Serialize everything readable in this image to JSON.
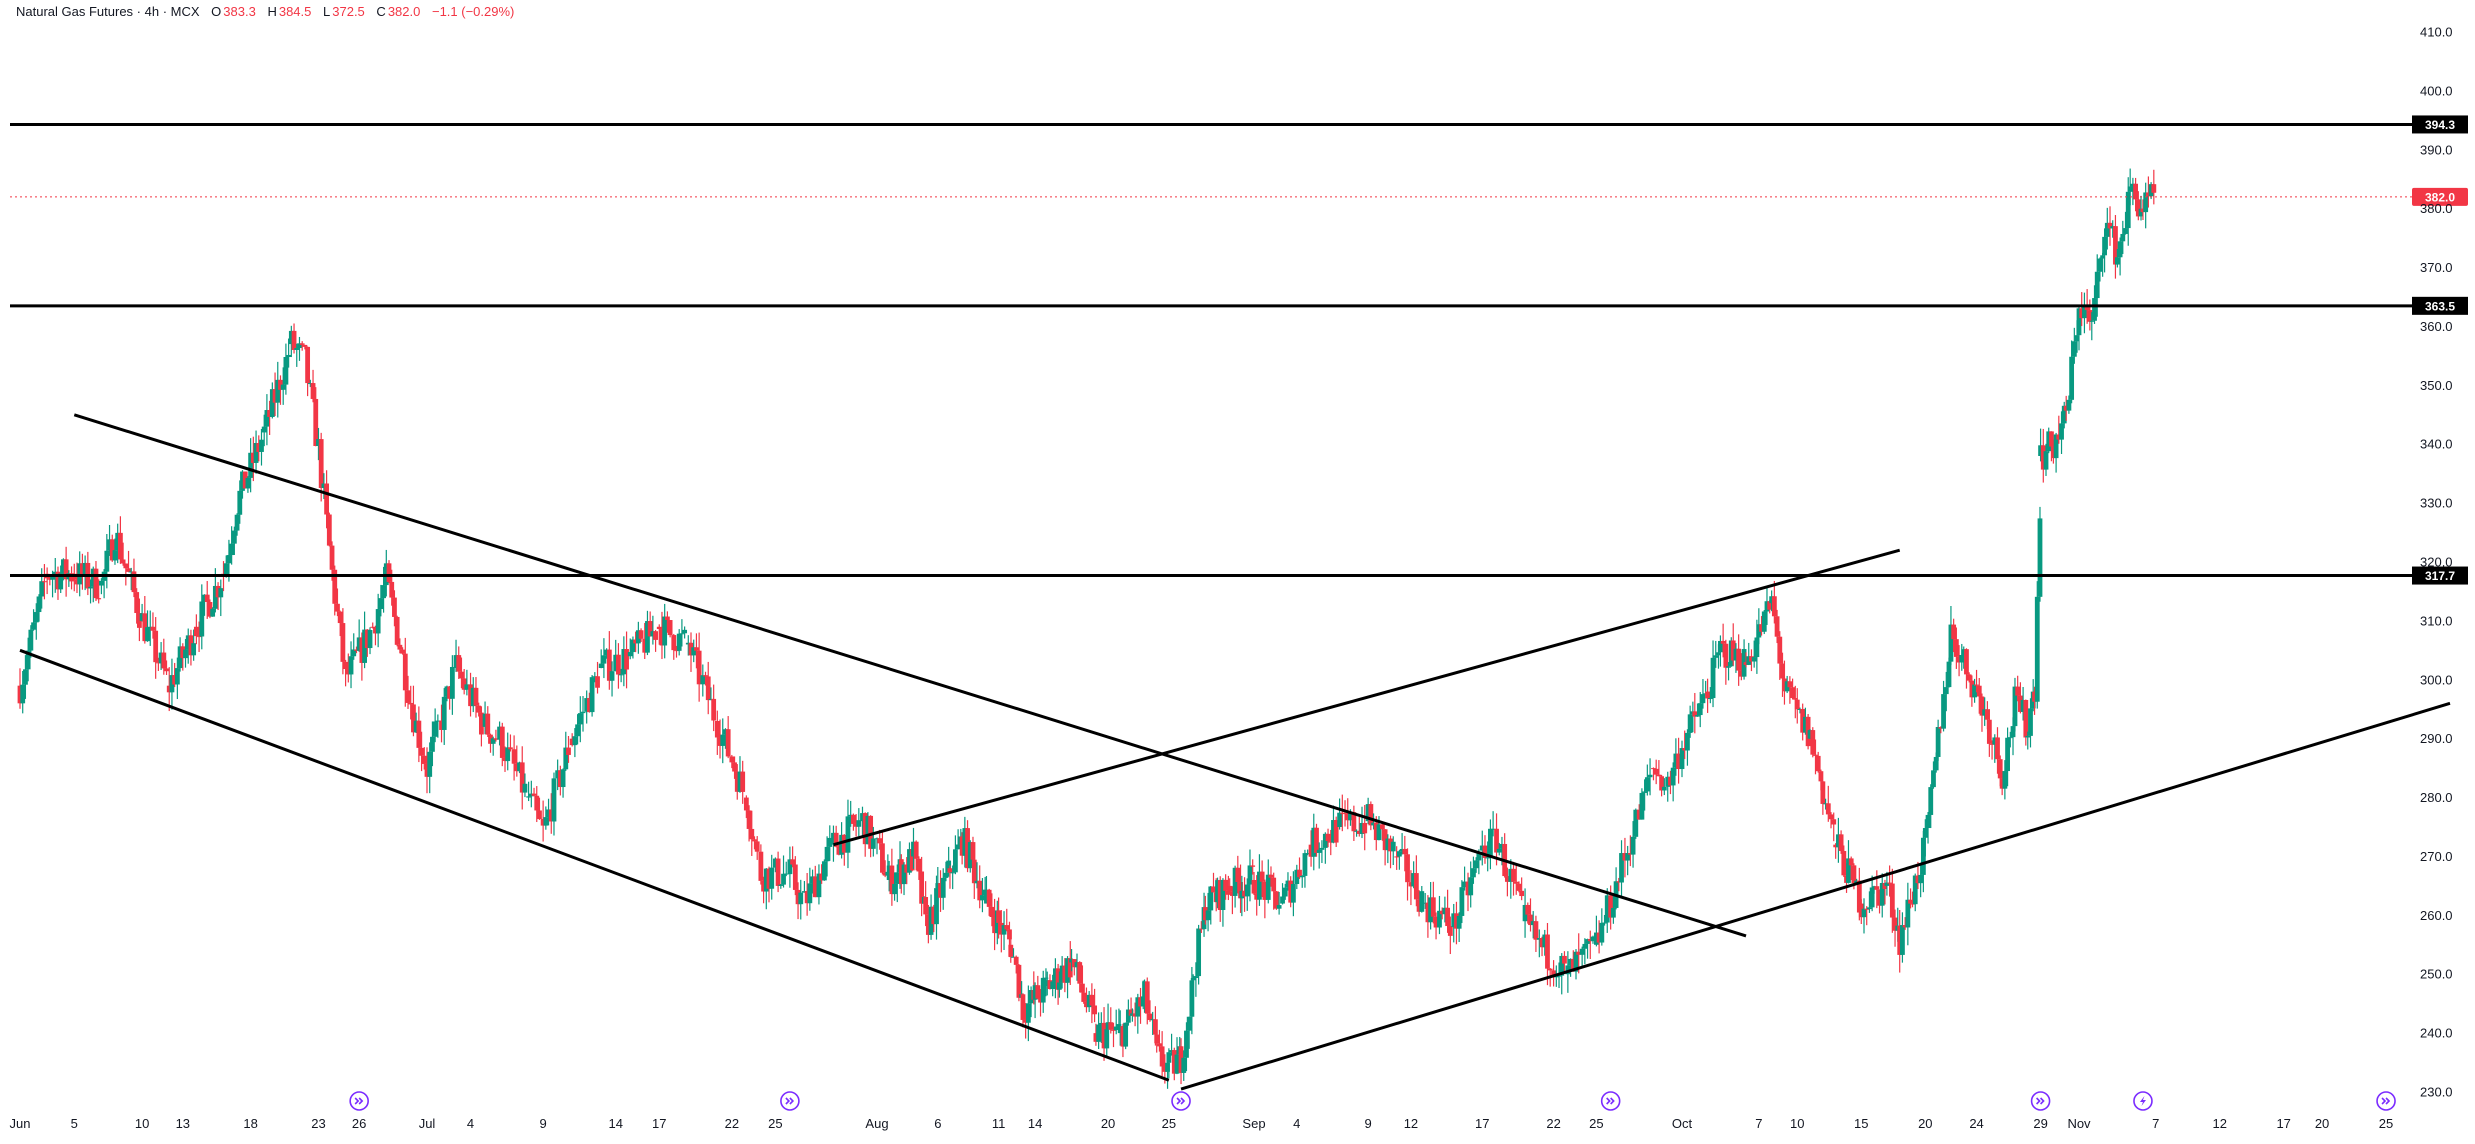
{
  "header": {
    "symbol": "Natural Gas Futures",
    "interval": "4h",
    "exchange": "MCX",
    "separator": " · ",
    "o_label": "O",
    "o_value": "383.3",
    "h_label": "H",
    "h_value": "384.5",
    "l_label": "L",
    "l_value": "372.5",
    "c_label": "C",
    "c_value": "382.0",
    "change": "−1.1 (−0.29%)"
  },
  "colors": {
    "up": "#089981",
    "down": "#f23645",
    "line": "#000000",
    "axis_text": "#131722",
    "current_price": "#f23645",
    "event_icon": "#7b2cff"
  },
  "chart_data": {
    "type": "candlestick",
    "ylim": [
      226,
      415
    ],
    "y_ticks": [
      "230.0",
      "240.0",
      "250.0",
      "260.0",
      "270.0",
      "280.0",
      "290.0",
      "300.0",
      "310.0",
      "320.0",
      "330.0",
      "340.0",
      "350.0",
      "360.0",
      "370.0",
      "380.0",
      "390.0",
      "400.0",
      "410.0"
    ],
    "x_ticks": [
      {
        "label": "Jun",
        "date": "2024-06-01"
      },
      {
        "label": "5",
        "date": "2024-06-05"
      },
      {
        "label": "10",
        "date": "2024-06-10"
      },
      {
        "label": "13",
        "date": "2024-06-13"
      },
      {
        "label": "18",
        "date": "2024-06-18"
      },
      {
        "label": "23",
        "date": "2024-06-23"
      },
      {
        "label": "26",
        "date": "2024-06-26"
      },
      {
        "label": "Jul",
        "date": "2024-07-01"
      },
      {
        "label": "4",
        "date": "2024-07-04"
      },
      {
        "label": "9",
        "date": "2024-07-09"
      },
      {
        "label": "14",
        "date": "2024-07-14"
      },
      {
        "label": "17",
        "date": "2024-07-17"
      },
      {
        "label": "22",
        "date": "2024-07-22"
      },
      {
        "label": "25",
        "date": "2024-07-25"
      },
      {
        "label": "Aug",
        "date": "2024-08-01"
      },
      {
        "label": "6",
        "date": "2024-08-06"
      },
      {
        "label": "11",
        "date": "2024-08-11"
      },
      {
        "label": "14",
        "date": "2024-08-14"
      },
      {
        "label": "20",
        "date": "2024-08-20"
      },
      {
        "label": "25",
        "date": "2024-08-25"
      },
      {
        "label": "Sep",
        "date": "2024-09-01"
      },
      {
        "label": "4",
        "date": "2024-09-04"
      },
      {
        "label": "9",
        "date": "2024-09-09"
      },
      {
        "label": "12",
        "date": "2024-09-12"
      },
      {
        "label": "17",
        "date": "2024-09-17"
      },
      {
        "label": "22",
        "date": "2024-09-22"
      },
      {
        "label": "25",
        "date": "2024-09-25"
      },
      {
        "label": "Oct",
        "date": "2024-10-01"
      },
      {
        "label": "7",
        "date": "2024-10-07"
      },
      {
        "label": "10",
        "date": "2024-10-10"
      },
      {
        "label": "15",
        "date": "2024-10-15"
      },
      {
        "label": "20",
        "date": "2024-10-20"
      },
      {
        "label": "24",
        "date": "2024-10-24"
      },
      {
        "label": "29",
        "date": "2024-10-29"
      },
      {
        "label": "Nov",
        "date": "2024-11-01"
      },
      {
        "label": "7",
        "date": "2024-11-07"
      },
      {
        "label": "12",
        "date": "2024-11-12"
      },
      {
        "label": "17",
        "date": "2024-11-17"
      },
      {
        "label": "20",
        "date": "2024-11-20"
      },
      {
        "label": "25",
        "date": "2024-11-25"
      }
    ],
    "horizontal_levels": [
      {
        "price": 394.3,
        "label": "394.3"
      },
      {
        "price": 363.5,
        "label": "363.5"
      },
      {
        "price": 317.7,
        "label": "317.7"
      }
    ],
    "current_price": {
      "price": 382.0,
      "label": "382.0"
    },
    "trend_lines": [
      {
        "from": {
          "date": "2024-06-01",
          "price": 305
        },
        "to": {
          "date": "2024-08-25",
          "price": 232
        }
      },
      {
        "from": {
          "date": "2024-06-05",
          "price": 345
        },
        "to": {
          "date": "2024-10-06",
          "price": 256.5
        }
      },
      {
        "from": {
          "date": "2024-07-29",
          "price": 272
        },
        "to": {
          "date": "2024-10-18",
          "price": 322
        }
      },
      {
        "from": {
          "date": "2024-08-26",
          "price": 230.5
        },
        "to": {
          "date": "2024-11-30",
          "price": 296
        }
      }
    ],
    "event_markers": [
      {
        "date": "2024-06-26",
        "kind": "dividend"
      },
      {
        "date": "2024-07-26",
        "kind": "dividend"
      },
      {
        "date": "2024-08-26",
        "kind": "dividend"
      },
      {
        "date": "2024-09-26",
        "kind": "dividend"
      },
      {
        "date": "2024-10-29",
        "kind": "dividend"
      },
      {
        "date": "2024-11-06",
        "kind": "split"
      },
      {
        "date": "2024-11-25",
        "kind": "dividend"
      }
    ],
    "price_path": [
      [
        "2024-06-01",
        299
      ],
      [
        "2024-06-03",
        318
      ],
      [
        "2024-06-05",
        318
      ],
      [
        "2024-06-07",
        316
      ],
      [
        "2024-06-08",
        325
      ],
      [
        "2024-06-10",
        310
      ],
      [
        "2024-06-12",
        299
      ],
      [
        "2024-06-14",
        309
      ],
      [
        "2024-06-16",
        318
      ],
      [
        "2024-06-17",
        330
      ],
      [
        "2024-06-19",
        342
      ],
      [
        "2024-06-21",
        357
      ],
      [
        "2024-06-22",
        354
      ],
      [
        "2024-06-23",
        339
      ],
      [
        "2024-06-24",
        318
      ],
      [
        "2024-06-25",
        300
      ],
      [
        "2024-06-27",
        309
      ],
      [
        "2024-06-28",
        317
      ],
      [
        "2024-06-29",
        306
      ],
      [
        "2024-06-30",
        294
      ],
      [
        "2024-07-01",
        285
      ],
      [
        "2024-07-03",
        302
      ],
      [
        "2024-07-05",
        292
      ],
      [
        "2024-07-06",
        290
      ],
      [
        "2024-07-08",
        280
      ],
      [
        "2024-07-09",
        274
      ],
      [
        "2024-07-11",
        290
      ],
      [
        "2024-07-13",
        302
      ],
      [
        "2024-07-15",
        304
      ],
      [
        "2024-07-17",
        309
      ],
      [
        "2024-07-19",
        306
      ],
      [
        "2024-07-21",
        293
      ],
      [
        "2024-07-23",
        280
      ],
      [
        "2024-07-24",
        267
      ],
      [
        "2024-07-26",
        267
      ],
      [
        "2024-07-27",
        262
      ],
      [
        "2024-07-29",
        272
      ],
      [
        "2024-07-31",
        276
      ],
      [
        "2024-08-02",
        266
      ],
      [
        "2024-08-04",
        270
      ],
      [
        "2024-08-05",
        258
      ],
      [
        "2024-08-07",
        268
      ],
      [
        "2024-08-08",
        273
      ],
      [
        "2024-08-10",
        262
      ],
      [
        "2024-08-12",
        255
      ],
      [
        "2024-08-13",
        244
      ],
      [
        "2024-08-15",
        248
      ],
      [
        "2024-08-17",
        252
      ],
      [
        "2024-08-19",
        240
      ],
      [
        "2024-08-21",
        240
      ],
      [
        "2024-08-23",
        246
      ],
      [
        "2024-08-24",
        236
      ],
      [
        "2024-08-25",
        234
      ],
      [
        "2024-08-26",
        236
      ],
      [
        "2024-08-27",
        250
      ],
      [
        "2024-08-28",
        262
      ],
      [
        "2024-08-30",
        265
      ],
      [
        "2024-09-01",
        266
      ],
      [
        "2024-09-03",
        262
      ],
      [
        "2024-09-05",
        272
      ],
      [
        "2024-09-07",
        275
      ],
      [
        "2024-09-09",
        276
      ],
      [
        "2024-09-11",
        270
      ],
      [
        "2024-09-13",
        262
      ],
      [
        "2024-09-15",
        258
      ],
      [
        "2024-09-17",
        271
      ],
      [
        "2024-09-18",
        273
      ],
      [
        "2024-09-20",
        259
      ],
      [
        "2024-09-21",
        255
      ],
      [
        "2024-09-23",
        250
      ],
      [
        "2024-09-25",
        255
      ],
      [
        "2024-09-26",
        262
      ],
      [
        "2024-09-29",
        285
      ],
      [
        "2024-09-30",
        282
      ],
      [
        "2024-10-01",
        289
      ],
      [
        "2024-10-03",
        298
      ],
      [
        "2024-10-04",
        305
      ],
      [
        "2024-10-06",
        303
      ],
      [
        "2024-10-08",
        313
      ],
      [
        "2024-10-09",
        298
      ],
      [
        "2024-10-11",
        290
      ],
      [
        "2024-10-13",
        272
      ],
      [
        "2024-10-15",
        262
      ],
      [
        "2024-10-17",
        265
      ],
      [
        "2024-10-18",
        256
      ],
      [
        "2024-10-19",
        264
      ],
      [
        "2024-10-20",
        272
      ],
      [
        "2024-10-21",
        290
      ],
      [
        "2024-10-22",
        308
      ],
      [
        "2024-10-23",
        303
      ],
      [
        "2024-10-24",
        298
      ],
      [
        "2024-10-25",
        292
      ],
      [
        "2024-10-26",
        284
      ],
      [
        "2024-10-27",
        296
      ],
      [
        "2024-10-28",
        292
      ],
      [
        "2024-10-28.5",
        299
      ],
      [
        "2024-10-29",
        338
      ],
      [
        "2024-10-30",
        340
      ],
      [
        "2024-10-31",
        345
      ],
      [
        "2024-11-01",
        364
      ],
      [
        "2024-11-02",
        360
      ],
      [
        "2024-11-03",
        378
      ],
      [
        "2024-11-04",
        372
      ],
      [
        "2024-11-05",
        383
      ],
      [
        "2024-11-06",
        380
      ],
      [
        "2024-11-07",
        382
      ]
    ]
  }
}
